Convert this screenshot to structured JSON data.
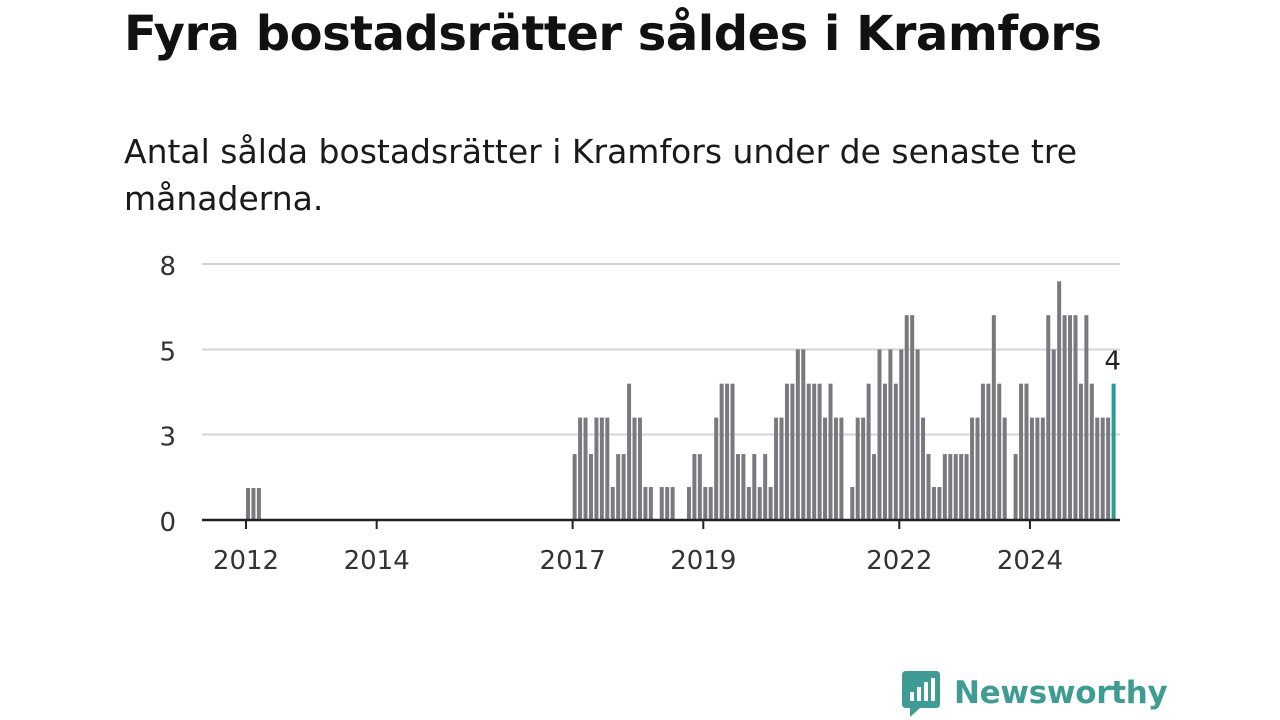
{
  "title": "Fyra bostadsrätter såldes i Kramfors",
  "subtitle": "Antal sålda bostadsrätter i Kramfors under de senaste tre månaderna.",
  "brand": {
    "name": "Newsworthy",
    "icon": "newsworthy-logo-icon",
    "color": "#3f9c94"
  },
  "chart_data": {
    "type": "bar",
    "title": "",
    "xlabel": "",
    "ylabel": "",
    "ylim": [
      0,
      8
    ],
    "y_ticks": [
      {
        "value": 0,
        "label": "0"
      },
      {
        "value": 2.67,
        "label": "3"
      },
      {
        "value": 5.33,
        "label": "5"
      },
      {
        "value": 8,
        "label": "8"
      }
    ],
    "x_ticks": [
      {
        "index": 0,
        "label": "2012"
      },
      {
        "index": 24,
        "label": "2014"
      },
      {
        "index": 60,
        "label": "2017"
      },
      {
        "index": 84,
        "label": "2019"
      },
      {
        "index": 120,
        "label": "2022"
      },
      {
        "index": 144,
        "label": "2024"
      }
    ],
    "grid": true,
    "bar_color": "#7a797f",
    "highlight_color": "#2a9d92",
    "highlight_label": "4",
    "values": [
      1,
      1,
      1,
      0,
      0,
      0,
      0,
      0,
      0,
      0,
      0,
      0,
      0,
      0,
      0,
      0,
      0,
      0,
      0,
      0,
      0,
      0,
      0,
      0,
      0,
      0,
      0,
      0,
      0,
      0,
      0,
      0,
      0,
      0,
      0,
      0,
      0,
      0,
      0,
      0,
      0,
      0,
      0,
      0,
      0,
      0,
      0,
      0,
      0,
      0,
      0,
      0,
      0,
      0,
      0,
      0,
      0,
      0,
      0,
      0,
      2,
      3,
      3,
      2,
      3,
      3,
      3,
      1,
      2,
      2,
      4,
      3,
      3,
      1,
      1,
      0,
      1,
      1,
      1,
      0,
      0,
      1,
      2,
      2,
      1,
      1,
      3,
      4,
      4,
      4,
      2,
      2,
      1,
      2,
      1,
      2,
      1,
      3,
      3,
      4,
      4,
      5,
      5,
      4,
      4,
      4,
      3,
      4,
      3,
      3,
      0,
      1,
      3,
      3,
      4,
      2,
      5,
      4,
      5,
      4,
      5,
      6,
      6,
      5,
      3,
      2,
      1,
      1,
      2,
      2,
      2,
      2,
      2,
      3,
      3,
      4,
      4,
      6,
      4,
      3,
      0,
      2,
      4,
      4,
      3,
      3,
      3,
      6,
      5,
      7,
      6,
      6,
      6,
      4,
      6,
      4,
      3,
      3,
      3,
      4
    ],
    "bar_heights": [
      1,
      1,
      1,
      0,
      0,
      0,
      0,
      0,
      0,
      0,
      0,
      0,
      0,
      0,
      0,
      0,
      0,
      0,
      0,
      0,
      0,
      0,
      0,
      0,
      0,
      0,
      0,
      0,
      0,
      0,
      0,
      0,
      0,
      0,
      0,
      0,
      0,
      0,
      0,
      0,
      0,
      0,
      0,
      0,
      0,
      0,
      0,
      0,
      0,
      0,
      0,
      0,
      0,
      0,
      0,
      0,
      0,
      0,
      0,
      0,
      2.06,
      3.2,
      3.2,
      2.06,
      3.2,
      3.2,
      3.2,
      1.03,
      2.06,
      2.06,
      4.26,
      3.2,
      3.2,
      1.03,
      1.03,
      0,
      1.03,
      1.03,
      1.03,
      0,
      0,
      1.03,
      2.06,
      2.06,
      1.03,
      1.03,
      3.2,
      4.26,
      4.26,
      4.26,
      2.06,
      2.06,
      1.03,
      2.06,
      1.03,
      2.06,
      1.03,
      3.2,
      3.2,
      4.26,
      4.26,
      5.33,
      5.33,
      4.26,
      4.26,
      4.26,
      3.2,
      4.26,
      3.2,
      3.2,
      0,
      1.03,
      3.2,
      3.2,
      4.26,
      2.06,
      5.33,
      4.26,
      5.33,
      4.26,
      5.33,
      6.4,
      6.4,
      5.33,
      3.2,
      2.06,
      1.03,
      1.03,
      2.06,
      2.06,
      2.06,
      2.06,
      2.06,
      3.2,
      3.2,
      4.26,
      4.26,
      6.4,
      4.26,
      3.2,
      0,
      2.06,
      4.26,
      4.26,
      3.2,
      3.2,
      3.2,
      6.4,
      5.33,
      7.46,
      6.4,
      6.4,
      6.4,
      4.26,
      6.4,
      4.26,
      3.2,
      3.2,
      3.2,
      4.26
    ]
  }
}
